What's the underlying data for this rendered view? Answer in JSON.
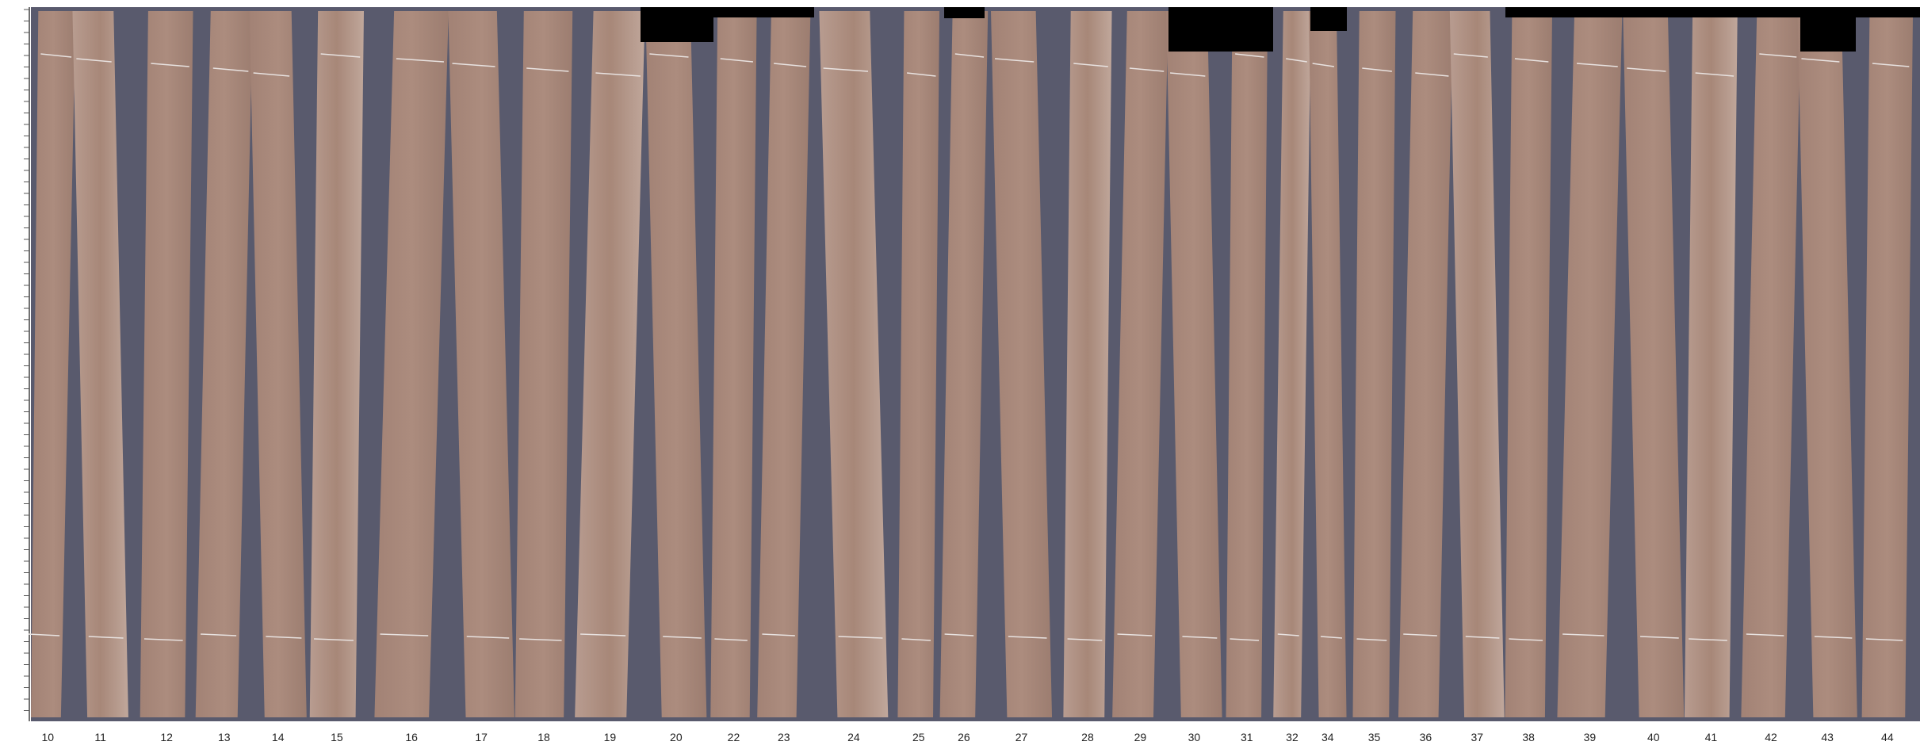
{
  "labels": [
    "10",
    "11",
    "12",
    "13",
    "14",
    "15",
    "16",
    "17",
    "18",
    "19",
    "20",
    "22",
    "23",
    "24",
    "25",
    "26",
    "27",
    "28",
    "29",
    "30",
    "31",
    "32",
    "34",
    "35",
    "36",
    "37",
    "38",
    "39",
    "40",
    "41",
    "42",
    "43",
    "44"
  ]
}
